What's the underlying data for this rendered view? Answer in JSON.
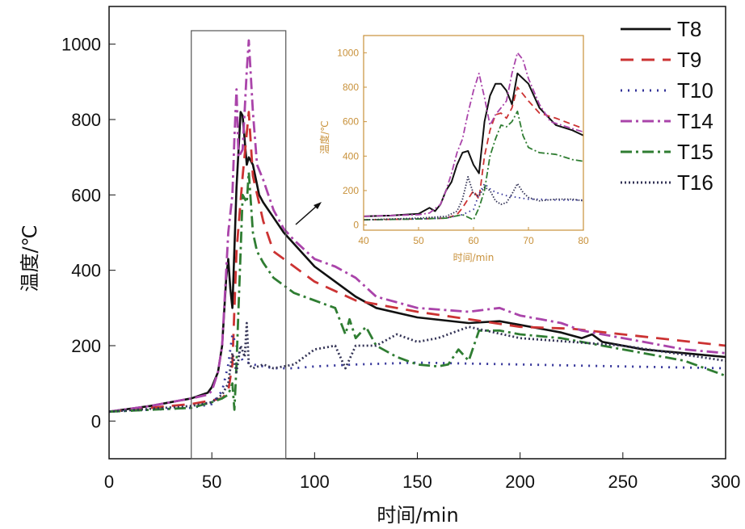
{
  "chart_data": [
    {
      "type": "line",
      "title": "",
      "xlabel": "时间/min",
      "ylabel": "温度/℃",
      "xlim": [
        0,
        300
      ],
      "ylim": [
        -100,
        1100
      ],
      "xticks": [
        0,
        50,
        100,
        150,
        200,
        250,
        300
      ],
      "yticks": [
        0,
        200,
        400,
        600,
        800,
        1000
      ],
      "x_tick_labels": [
        "0",
        "50",
        "100",
        "150",
        "200",
        "250",
        "300"
      ],
      "y_tick_labels": [
        "0",
        "200",
        "400",
        "600",
        "800",
        "1000"
      ],
      "zoom_window_x": [
        40,
        86
      ],
      "series": [
        {
          "name": "T8",
          "color": "#111111",
          "style": "solid",
          "x": [
            0,
            20,
            40,
            48,
            50,
            53,
            55,
            57,
            58,
            59,
            60,
            62,
            64,
            65,
            67,
            68,
            70,
            73,
            75,
            80,
            85,
            90,
            95,
            100,
            110,
            120,
            130,
            150,
            175,
            190,
            200,
            210,
            220,
            230,
            235,
            240,
            260,
            280,
            300
          ],
          "y": [
            25,
            40,
            60,
            75,
            90,
            130,
            200,
            380,
            430,
            350,
            300,
            620,
            820,
            810,
            680,
            700,
            680,
            600,
            580,
            540,
            500,
            470,
            440,
            410,
            370,
            330,
            300,
            275,
            260,
            265,
            255,
            245,
            235,
            220,
            230,
            210,
            190,
            180,
            170
          ]
        },
        {
          "name": "T9",
          "color": "#cc3333",
          "style": "dashed",
          "x": [
            0,
            20,
            40,
            50,
            55,
            58,
            60,
            62,
            65,
            68,
            70,
            75,
            80,
            90,
            100,
            120,
            150,
            175,
            200,
            225,
            250,
            275,
            300
          ],
          "y": [
            25,
            35,
            45,
            55,
            60,
            80,
            150,
            450,
            650,
            820,
            650,
            530,
            450,
            410,
            370,
            320,
            290,
            270,
            250,
            245,
            230,
            215,
            200
          ]
        },
        {
          "name": "T10",
          "color": "#333399",
          "style": "dotted",
          "x": [
            0,
            40,
            50,
            55,
            58,
            60,
            62,
            65,
            70,
            75,
            80,
            90,
            100,
            120,
            150,
            200,
            250,
            300
          ],
          "y": [
            25,
            35,
            45,
            80,
            150,
            230,
            200,
            160,
            150,
            145,
            140,
            140,
            145,
            150,
            155,
            150,
            145,
            140
          ]
        },
        {
          "name": "T14",
          "color": "#aa44aa",
          "style": "dashdot",
          "x": [
            0,
            20,
            40,
            48,
            50,
            53,
            55,
            57,
            58,
            60,
            61,
            62,
            63,
            65,
            67,
            68,
            70,
            72,
            75,
            80,
            85,
            90,
            100,
            110,
            120,
            130,
            150,
            175,
            190,
            200,
            210,
            220,
            230,
            240,
            260,
            280,
            300
          ],
          "y": [
            25,
            40,
            60,
            70,
            80,
            130,
            200,
            400,
            500,
            600,
            750,
            880,
            700,
            720,
            930,
            1010,
            820,
            680,
            640,
            560,
            510,
            480,
            430,
            410,
            380,
            330,
            300,
            290,
            300,
            280,
            270,
            260,
            240,
            230,
            210,
            190,
            180
          ]
        },
        {
          "name": "T15",
          "color": "#2f7d32",
          "style": "dashdot",
          "x": [
            0,
            40,
            50,
            55,
            58,
            60,
            61,
            62,
            63,
            64,
            65,
            67,
            68,
            70,
            72,
            75,
            80,
            90,
            100,
            110,
            115,
            117,
            120,
            125,
            130,
            140,
            150,
            160,
            165,
            170,
            175,
            180,
            190,
            200,
            220,
            240,
            260,
            280,
            300
          ],
          "y": [
            25,
            35,
            50,
            60,
            70,
            100,
            30,
            150,
            300,
            450,
            600,
            580,
            660,
            500,
            450,
            420,
            380,
            340,
            320,
            300,
            230,
            270,
            220,
            250,
            200,
            170,
            150,
            145,
            150,
            190,
            160,
            240,
            240,
            230,
            220,
            200,
            180,
            160,
            120
          ]
        },
        {
          "name": "T16",
          "color": "#333355",
          "style": "densedot",
          "x": [
            0,
            40,
            50,
            55,
            58,
            60,
            62,
            64,
            66,
            67,
            68,
            70,
            75,
            80,
            90,
            100,
            110,
            115,
            120,
            130,
            140,
            150,
            160,
            170,
            175,
            200,
            250,
            300
          ],
          "y": [
            25,
            40,
            50,
            70,
            100,
            180,
            130,
            200,
            170,
            260,
            150,
            140,
            150,
            140,
            150,
            190,
            200,
            140,
            200,
            200,
            230,
            210,
            220,
            240,
            250,
            220,
            200,
            160
          ]
        }
      ]
    },
    {
      "type": "line",
      "title": "",
      "xlabel": "时间/min",
      "ylabel": "温度/℃",
      "xlim": [
        40,
        80
      ],
      "ylim": [
        -30,
        1100
      ],
      "xticks": [
        40,
        50,
        60,
        70,
        80
      ],
      "yticks": [
        0,
        200,
        400,
        600,
        800,
        1000
      ],
      "x_tick_labels": [
        "40",
        "50",
        "60",
        "70",
        "80"
      ],
      "y_tick_labels": [
        "0",
        "200",
        "400",
        "600",
        "800",
        "1000"
      ],
      "axis_color": "#c8913a",
      "series": [
        {
          "name": "T8",
          "color": "#111111",
          "style": "solid",
          "x": [
            40,
            45,
            50,
            52,
            53,
            54,
            55,
            56,
            57,
            58,
            59,
            60,
            61,
            62,
            63,
            64,
            65,
            66,
            67,
            68,
            70,
            72,
            75,
            78,
            80
          ],
          "y": [
            50,
            55,
            65,
            100,
            80,
            120,
            200,
            250,
            350,
            420,
            430,
            350,
            300,
            600,
            750,
            820,
            820,
            780,
            700,
            880,
            820,
            680,
            580,
            550,
            520
          ]
        },
        {
          "name": "T9",
          "color": "#cc3333",
          "style": "dashed",
          "x": [
            40,
            50,
            55,
            57,
            58,
            60,
            61,
            62,
            63,
            64,
            65,
            66,
            67,
            68,
            70,
            72,
            75,
            80
          ],
          "y": [
            30,
            35,
            40,
            60,
            100,
            200,
            150,
            400,
            550,
            640,
            650,
            620,
            680,
            800,
            720,
            650,
            620,
            560
          ]
        },
        {
          "name": "T10",
          "color": "#333399",
          "style": "dotted",
          "x": [
            40,
            50,
            55,
            58,
            60,
            61,
            62,
            63,
            64,
            65,
            66,
            68,
            70,
            72,
            75,
            80
          ],
          "y": [
            30,
            35,
            40,
            60,
            90,
            180,
            240,
            210,
            190,
            180,
            170,
            160,
            150,
            150,
            145,
            145
          ]
        },
        {
          "name": "T14",
          "color": "#aa44aa",
          "style": "dashdot",
          "x": [
            40,
            50,
            52,
            54,
            55,
            56,
            57,
            58,
            59,
            60,
            61,
            62,
            63,
            64,
            65,
            66,
            67,
            68,
            69,
            70,
            72,
            74,
            76,
            78,
            80
          ],
          "y": [
            50,
            60,
            70,
            120,
            200,
            300,
            420,
            500,
            650,
            780,
            880,
            740,
            580,
            640,
            680,
            720,
            880,
            1000,
            960,
            850,
            700,
            600,
            580,
            560,
            540
          ]
        },
        {
          "name": "T15",
          "color": "#2f7d32",
          "style": "dashdot",
          "x": [
            40,
            50,
            55,
            58,
            60,
            61,
            62,
            63,
            64,
            65,
            66,
            67,
            68,
            69,
            70,
            72,
            75,
            78,
            80
          ],
          "y": [
            30,
            35,
            40,
            60,
            30,
            100,
            200,
            400,
            500,
            580,
            570,
            600,
            660,
            520,
            450,
            420,
            410,
            380,
            370
          ]
        },
        {
          "name": "T16",
          "color": "#333355",
          "style": "densedot",
          "x": [
            40,
            50,
            55,
            57,
            58,
            59,
            60,
            61,
            62,
            63,
            64,
            65,
            66,
            67,
            68,
            69,
            70,
            72,
            75,
            78,
            80
          ],
          "y": [
            30,
            40,
            50,
            80,
            150,
            280,
            180,
            170,
            220,
            200,
            140,
            120,
            130,
            180,
            240,
            190,
            160,
            140,
            150,
            150,
            140
          ]
        }
      ]
    }
  ]
}
